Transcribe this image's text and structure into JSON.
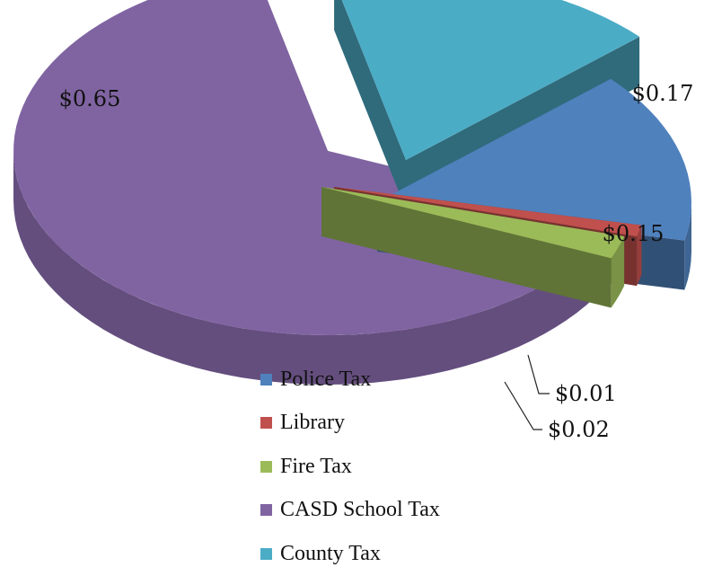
{
  "chart_data": {
    "type": "pie",
    "title": "",
    "slices": [
      {
        "name": "Police Tax",
        "value": 0.15,
        "label": "$0.15",
        "color": "#4f81bd"
      },
      {
        "name": "Library",
        "value": 0.01,
        "label": "$0.01",
        "color": "#c0504d"
      },
      {
        "name": "Fire Tax",
        "value": 0.02,
        "label": "$0.02",
        "color": "#9bbb59"
      },
      {
        "name": "CASD School Tax",
        "value": 0.65,
        "label": "$0.65",
        "color": "#8064a2"
      },
      {
        "name": "County Tax",
        "value": 0.17,
        "label": "$0.17",
        "color": "#4bacc6"
      }
    ],
    "exploded": true,
    "three_d": true,
    "legend_position": "bottom"
  }
}
